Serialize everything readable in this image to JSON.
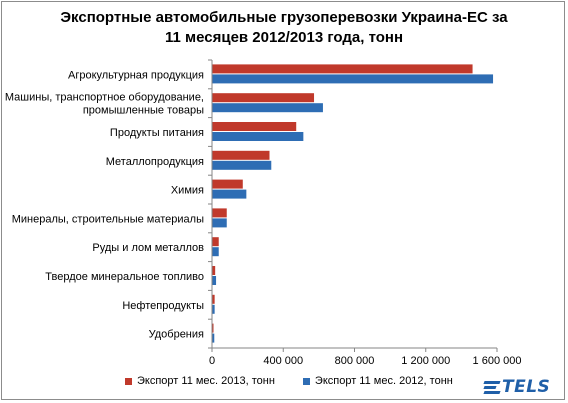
{
  "chart_data": {
    "type": "bar",
    "orientation": "horizontal",
    "title_lines": [
      "Экспортные автомобильные грузоперевозки  Украина-ЕС за",
      "11 месяцев 2012/2013 года, тонн"
    ],
    "categories": [
      [
        "Агрокультурная продукция"
      ],
      [
        "Машины, транспортное оборудование,",
        "промышленные товары"
      ],
      [
        "Продукты питания"
      ],
      [
        "Металлопродукция"
      ],
      [
        "Химия"
      ],
      [
        "Минералы, строительные материалы"
      ],
      [
        "Руды и лом металлов"
      ],
      [
        "Твердое минеральное топливо"
      ],
      [
        "Нефтепродукты"
      ],
      [
        "Удобрения"
      ]
    ],
    "series": [
      {
        "name": "Экспорт 11 мес. 2013, тонн",
        "color": "#c0392b",
        "values": [
          1460000,
          570000,
          470000,
          320000,
          170000,
          80000,
          35000,
          15000,
          12000,
          5000
        ]
      },
      {
        "name": "Экспорт 11 мес. 2012, тонн",
        "color": "#2e6db4",
        "values": [
          1575000,
          620000,
          510000,
          330000,
          190000,
          80000,
          35000,
          20000,
          12000,
          10000
        ]
      }
    ],
    "xlim": [
      0,
      1600000
    ],
    "x_ticks": [
      0,
      400000,
      800000,
      1200000,
      1600000
    ],
    "x_tick_labels": [
      "0",
      "400 000",
      "800 000",
      "1 200 000",
      "1 600 000"
    ],
    "legend_position": "bottom",
    "grid": false
  },
  "logo": {
    "text": "TELS"
  }
}
